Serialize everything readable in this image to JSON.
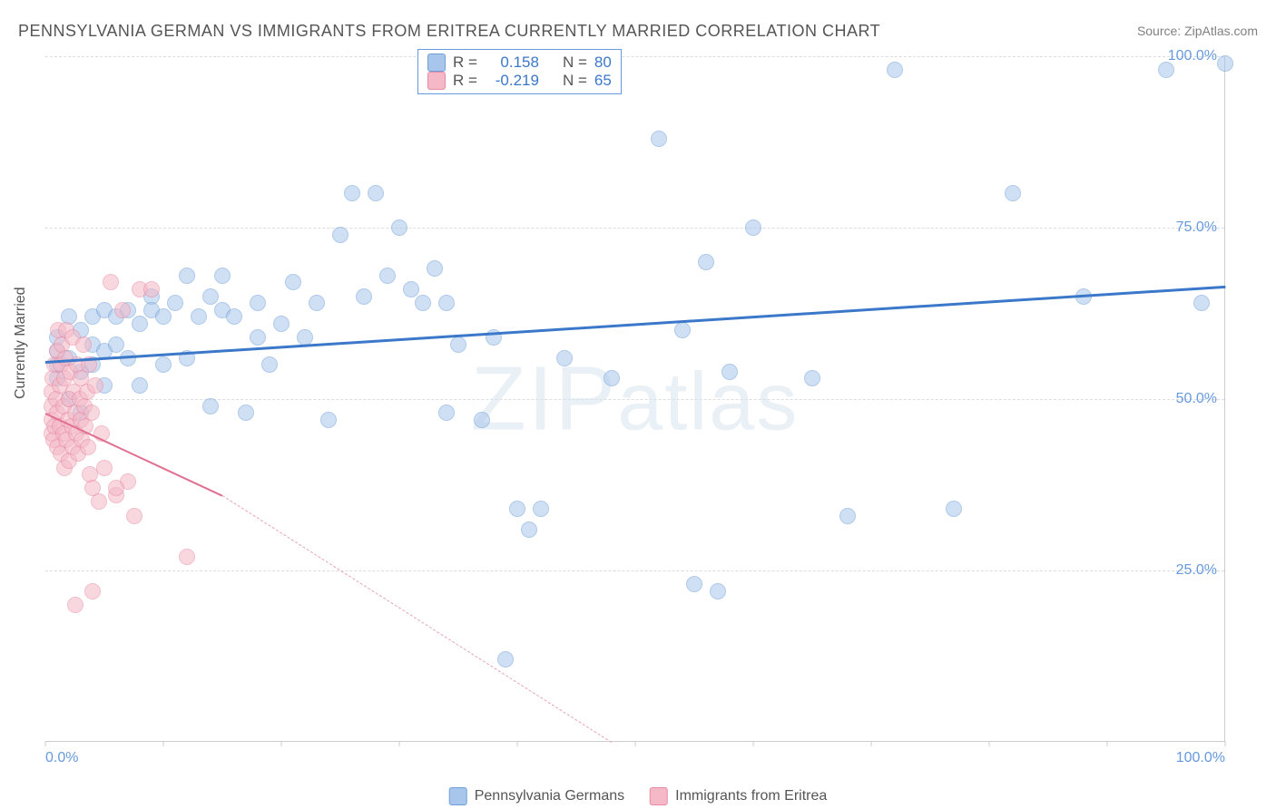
{
  "title": "PENNSYLVANIA GERMAN VS IMMIGRANTS FROM ERITREA CURRENTLY MARRIED CORRELATION CHART",
  "source_label": "Source: ZipAtlas.com",
  "ylabel": "Currently Married",
  "watermark": "ZIPatlas",
  "chart": {
    "type": "scatter",
    "xlim": [
      0,
      100
    ],
    "ylim": [
      0,
      100
    ],
    "ytick_positions": [
      25,
      50,
      75,
      100
    ],
    "ytick_labels": [
      "25.0%",
      "50.0%",
      "75.0%",
      "100.0%"
    ],
    "xtick_positions": [
      0,
      10,
      20,
      30,
      40,
      50,
      60,
      70,
      80,
      90,
      100
    ],
    "xtick_labels_shown": {
      "0": "0.0%",
      "100": "100.0%"
    },
    "background_color": "#ffffff",
    "grid_color": "#dddddd",
    "axis_color": "#cccccc",
    "tick_label_color": "#6699dd",
    "marker_radius": 9,
    "marker_opacity": 0.55,
    "marker_border_width": 1.5
  },
  "series": [
    {
      "name": "Pennsylvania Germans",
      "color_fill": "#a8c6ec",
      "color_stroke": "#6f9fd8",
      "legend_swatch_fill": "#a8c6ec",
      "legend_swatch_border": "#6f9fd8",
      "R_label": "R =",
      "R_value": "0.158",
      "N_label": "N =",
      "N_value": "80",
      "trend": {
        "x1": 0,
        "y1": 55.5,
        "x2": 100,
        "y2": 66.5,
        "color": "#3b78c9",
        "width": 3,
        "dash": "solid"
      },
      "points": [
        [
          1,
          55
        ],
        [
          1,
          57
        ],
        [
          1,
          59
        ],
        [
          1,
          53
        ],
        [
          2,
          50
        ],
        [
          2,
          56
        ],
        [
          2,
          62
        ],
        [
          3,
          60
        ],
        [
          3,
          54
        ],
        [
          3,
          48
        ],
        [
          4,
          62
        ],
        [
          4,
          55
        ],
        [
          4,
          58
        ],
        [
          5,
          63
        ],
        [
          5,
          57
        ],
        [
          5,
          52
        ],
        [
          6,
          62
        ],
        [
          6,
          58
        ],
        [
          7,
          56
        ],
        [
          7,
          63
        ],
        [
          8,
          61
        ],
        [
          8,
          52
        ],
        [
          9,
          65
        ],
        [
          9,
          63
        ],
        [
          10,
          62
        ],
        [
          10,
          55
        ],
        [
          11,
          64
        ],
        [
          12,
          68
        ],
        [
          12,
          56
        ],
        [
          13,
          62
        ],
        [
          14,
          65
        ],
        [
          14,
          49
        ],
        [
          15,
          68
        ],
        [
          15,
          63
        ],
        [
          16,
          62
        ],
        [
          17,
          48
        ],
        [
          18,
          59
        ],
        [
          18,
          64
        ],
        [
          19,
          55
        ],
        [
          20,
          61
        ],
        [
          21,
          67
        ],
        [
          22,
          59
        ],
        [
          23,
          64
        ],
        [
          24,
          47
        ],
        [
          25,
          74
        ],
        [
          26,
          80
        ],
        [
          27,
          65
        ],
        [
          28,
          80
        ],
        [
          29,
          68
        ],
        [
          30,
          75
        ],
        [
          31,
          66
        ],
        [
          32,
          64
        ],
        [
          33,
          69
        ],
        [
          34,
          64
        ],
        [
          34,
          48
        ],
        [
          35,
          58
        ],
        [
          37,
          47
        ],
        [
          38,
          59
        ],
        [
          39,
          12
        ],
        [
          40,
          34
        ],
        [
          41,
          31
        ],
        [
          42,
          34
        ],
        [
          44,
          56
        ],
        [
          48,
          53
        ],
        [
          52,
          88
        ],
        [
          54,
          60
        ],
        [
          55,
          23
        ],
        [
          56,
          70
        ],
        [
          57,
          22
        ],
        [
          58,
          54
        ],
        [
          60,
          75
        ],
        [
          65,
          53
        ],
        [
          68,
          33
        ],
        [
          72,
          98
        ],
        [
          77,
          34
        ],
        [
          82,
          80
        ],
        [
          88,
          65
        ],
        [
          95,
          98
        ],
        [
          98,
          64
        ],
        [
          100,
          99
        ]
      ]
    },
    {
      "name": "Immigrants from Eritrea",
      "color_fill": "#f4b8c6",
      "color_stroke": "#e88aa3",
      "legend_swatch_fill": "#f4b8c6",
      "legend_swatch_border": "#e88aa3",
      "R_label": "R =",
      "R_value": "-0.219",
      "N_label": "N =",
      "N_value": "65",
      "trend_solid": {
        "x1": 0,
        "y1": 48,
        "x2": 15,
        "y2": 36,
        "color": "#e16f90",
        "width": 2
      },
      "trend_dash": {
        "x1": 15,
        "y1": 36,
        "x2": 48,
        "y2": 0,
        "color": "#e8a3b5",
        "width": 1.5
      },
      "points": [
        [
          0.5,
          47
        ],
        [
          0.5,
          49
        ],
        [
          0.5,
          51
        ],
        [
          0.5,
          45
        ],
        [
          0.6,
          53
        ],
        [
          0.7,
          44
        ],
        [
          0.8,
          55
        ],
        [
          0.8,
          46
        ],
        [
          0.9,
          50
        ],
        [
          1.0,
          57
        ],
        [
          1.0,
          43
        ],
        [
          1.0,
          48
        ],
        [
          1.1,
          60
        ],
        [
          1.2,
          46
        ],
        [
          1.2,
          52
        ],
        [
          1.3,
          42
        ],
        [
          1.3,
          55
        ],
        [
          1.4,
          58
        ],
        [
          1.5,
          45
        ],
        [
          1.5,
          49
        ],
        [
          1.6,
          53
        ],
        [
          1.6,
          40
        ],
        [
          1.7,
          56
        ],
        [
          1.8,
          44
        ],
        [
          1.8,
          60
        ],
        [
          1.9,
          47
        ],
        [
          2.0,
          50
        ],
        [
          2.0,
          41
        ],
        [
          2.1,
          54
        ],
        [
          2.2,
          46
        ],
        [
          2.3,
          59
        ],
        [
          2.3,
          43
        ],
        [
          2.4,
          51
        ],
        [
          2.5,
          48
        ],
        [
          2.6,
          45
        ],
        [
          2.7,
          55
        ],
        [
          2.8,
          42
        ],
        [
          2.9,
          50
        ],
        [
          3.0,
          47
        ],
        [
          3.0,
          53
        ],
        [
          3.1,
          44
        ],
        [
          3.2,
          58
        ],
        [
          3.3,
          49
        ],
        [
          3.4,
          46
        ],
        [
          3.5,
          51
        ],
        [
          3.6,
          43
        ],
        [
          3.7,
          55
        ],
        [
          3.8,
          39
        ],
        [
          3.9,
          48
        ],
        [
          4.0,
          37
        ],
        [
          4.2,
          52
        ],
        [
          4.5,
          35
        ],
        [
          4.8,
          45
        ],
        [
          5.0,
          40
        ],
        [
          5.5,
          67
        ],
        [
          6.0,
          36
        ],
        [
          6.5,
          63
        ],
        [
          7.0,
          38
        ],
        [
          7.5,
          33
        ],
        [
          8.0,
          66
        ],
        [
          2.5,
          20
        ],
        [
          4.0,
          22
        ],
        [
          6.0,
          37
        ],
        [
          9.0,
          66
        ],
        [
          12.0,
          27
        ]
      ]
    }
  ],
  "stats_legend": {
    "value_color": "#3b78c9"
  },
  "bottom_legend": {
    "items": [
      {
        "label": "Pennsylvania Germans",
        "fill": "#a8c6ec",
        "border": "#6f9fd8"
      },
      {
        "label": "Immigrants from Eritrea",
        "fill": "#f4b8c6",
        "border": "#e88aa3"
      }
    ]
  }
}
